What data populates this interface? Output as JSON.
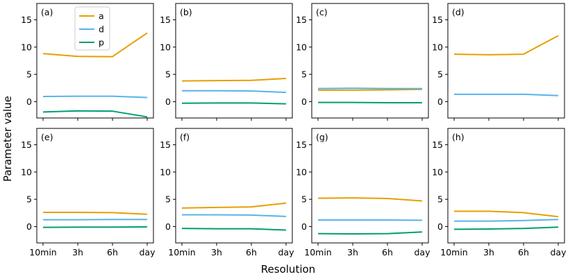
{
  "figure": {
    "xlabel": "Resolution",
    "ylabel": "Parameter value"
  },
  "chart_data": {
    "type": "line",
    "layout": "grid 2 rows x 4 columns, shared axes",
    "categories": [
      "10min",
      "3h",
      "6h",
      "day"
    ],
    "ylim": [
      -3,
      18
    ],
    "yticks": [
      0,
      5,
      10,
      15
    ],
    "xlabel": "Resolution",
    "ylabel": "Parameter value",
    "grid": false,
    "legend": {
      "placement": "top-left of panel (a)",
      "entries": [
        "a",
        "d",
        "p"
      ]
    },
    "colors": {
      "a": "#E69F00",
      "d": "#56B4E9",
      "p": "#009E73"
    },
    "panels": [
      {
        "label": "(a)",
        "series": [
          {
            "name": "a",
            "values": [
              8.8,
              8.3,
              8.25,
              12.6
            ]
          },
          {
            "name": "d",
            "values": [
              0.95,
              1.0,
              1.0,
              0.75
            ]
          },
          {
            "name": "p",
            "values": [
              -1.9,
              -1.7,
              -1.75,
              -2.8
            ]
          }
        ]
      },
      {
        "label": "(b)",
        "series": [
          {
            "name": "a",
            "values": [
              3.8,
              3.85,
              3.9,
              4.25
            ]
          },
          {
            "name": "d",
            "values": [
              2.0,
              2.0,
              1.95,
              1.7
            ]
          },
          {
            "name": "p",
            "values": [
              -0.3,
              -0.25,
              -0.25,
              -0.4
            ]
          }
        ]
      },
      {
        "label": "(c)",
        "series": [
          {
            "name": "a",
            "values": [
              2.1,
              2.1,
              2.15,
              2.25
            ]
          },
          {
            "name": "d",
            "values": [
              2.4,
              2.45,
              2.4,
              2.4
            ]
          },
          {
            "name": "p",
            "values": [
              -0.15,
              -0.15,
              -0.2,
              -0.2
            ]
          }
        ]
      },
      {
        "label": "(d)",
        "series": [
          {
            "name": "a",
            "values": [
              8.7,
              8.6,
              8.7,
              12.1
            ]
          },
          {
            "name": "d",
            "values": [
              1.35,
              1.35,
              1.35,
              1.1
            ]
          }
        ]
      },
      {
        "label": "(e)",
        "series": [
          {
            "name": "a",
            "values": [
              2.6,
              2.6,
              2.55,
              2.25
            ]
          },
          {
            "name": "d",
            "values": [
              1.25,
              1.25,
              1.3,
              1.3
            ]
          },
          {
            "name": "p",
            "values": [
              -0.15,
              -0.1,
              -0.1,
              -0.05
            ]
          }
        ]
      },
      {
        "label": "(f)",
        "series": [
          {
            "name": "a",
            "values": [
              3.4,
              3.5,
              3.6,
              4.3
            ]
          },
          {
            "name": "d",
            "values": [
              2.15,
              2.15,
              2.1,
              1.85
            ]
          },
          {
            "name": "p",
            "values": [
              -0.35,
              -0.4,
              -0.4,
              -0.65
            ]
          }
        ]
      },
      {
        "label": "(g)",
        "series": [
          {
            "name": "a",
            "values": [
              5.2,
              5.25,
              5.15,
              4.7
            ]
          },
          {
            "name": "d",
            "values": [
              1.2,
              1.2,
              1.2,
              1.15
            ]
          },
          {
            "name": "p",
            "values": [
              -1.3,
              -1.35,
              -1.3,
              -1.0
            ]
          }
        ]
      },
      {
        "label": "(h)",
        "series": [
          {
            "name": "a",
            "values": [
              2.8,
              2.8,
              2.55,
              1.8
            ]
          },
          {
            "name": "d",
            "values": [
              1.0,
              1.0,
              1.1,
              1.3
            ]
          },
          {
            "name": "p",
            "values": [
              -0.5,
              -0.45,
              -0.35,
              -0.1
            ]
          }
        ]
      }
    ]
  }
}
